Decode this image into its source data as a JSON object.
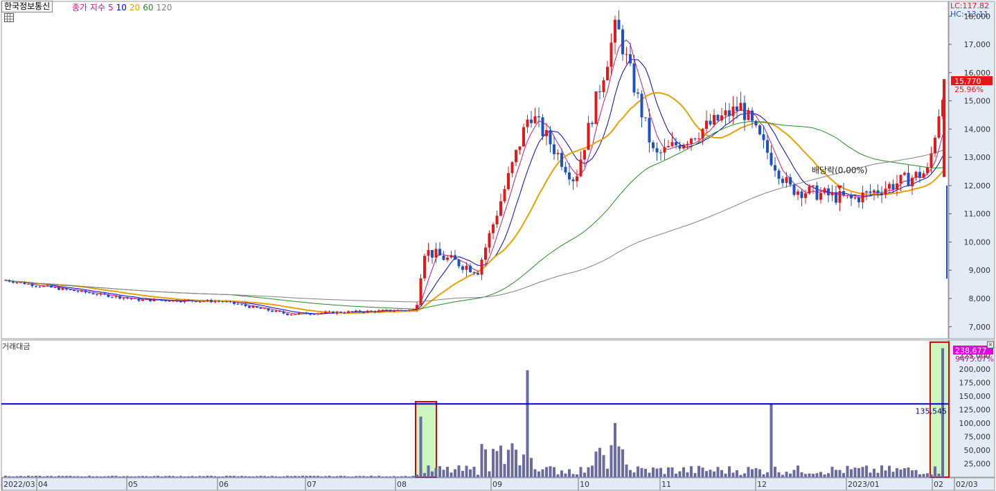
{
  "header": {
    "stock_name": "한국정보통신",
    "ma_label": "종가 지수",
    "ma_periods": [
      {
        "label": "5",
        "color": "#c71585"
      },
      {
        "label": "10",
        "color": "#0000cd"
      },
      {
        "label": "20",
        "color": "#e8a000"
      },
      {
        "label": "60",
        "color": "#228b22"
      },
      {
        "label": "120",
        "color": "#808080"
      }
    ],
    "lc": "LC:117.82",
    "hc": "HC:-13.11"
  },
  "price_labels": {
    "current_price": "15,770",
    "change_pct": "25.96%",
    "dividend_note": "배당락(0.00%)"
  },
  "volume_labels": {
    "title": "거래대금",
    "latest_value": "238,677",
    "latest_pct": "9475.07%",
    "reference_value": "135,545"
  },
  "colors": {
    "up": "#e31919",
    "down": "#1e50c8",
    "volume_bar": "#6a6aa5",
    "highlight_fill": "#ccf5c0",
    "highlight_border": "#e00000",
    "reference_line": "#0000cc",
    "axis_bg": "#e3ebf7"
  },
  "chart_data": [
    {
      "type": "candlestick",
      "title": "한국정보통신",
      "y_ticks": [
        "7,000",
        "8,000",
        "9,000",
        "10,000",
        "11,000",
        "12,000",
        "13,000",
        "14,000",
        "15,000",
        "16,000",
        "17,000",
        "18,000"
      ],
      "ylim": [
        6700,
        18400
      ],
      "x_ticks": [
        "2022/03",
        "04",
        "05",
        "06",
        "07",
        "08",
        "09",
        "10",
        "11",
        "12",
        "2023/01",
        "02",
        "02/03"
      ],
      "grid": false,
      "approx_close_path": [
        {
          "label": "2022/03",
          "close": 8650
        },
        {
          "label": "04",
          "close": 8450
        },
        {
          "label": "05",
          "close": 7950
        },
        {
          "label": "06",
          "close": 7900
        },
        {
          "label": "07",
          "close": 7450
        },
        {
          "label": "08",
          "close": 7600
        },
        {
          "label": "08 spike",
          "close": 9700
        },
        {
          "label": "09",
          "close": 9000
        },
        {
          "label": "09 high",
          "close": 14600
        },
        {
          "label": "10",
          "close": 12200
        },
        {
          "label": "10 high",
          "close": 17700
        },
        {
          "label": "11",
          "close": 13000
        },
        {
          "label": "11 high",
          "close": 14800
        },
        {
          "label": "12",
          "close": 13500
        },
        {
          "label": "12 low",
          "close": 11900
        },
        {
          "label": "2023/01",
          "close": 11500
        },
        {
          "label": "02",
          "close": 12500
        },
        {
          "label": "02/03",
          "close": 15770
        }
      ]
    },
    {
      "type": "bar",
      "title": "거래대금",
      "y_ticks": [
        "25,000",
        "50,000",
        "75,000",
        "100,000",
        "125,000",
        "150,000",
        "175,000",
        "200,000",
        "225,000"
      ],
      "ylim": [
        0,
        250000
      ],
      "reference_line": 135545,
      "notable_values": [
        {
          "label": "08",
          "value": 112000
        },
        {
          "label": "09",
          "value": 198000
        },
        {
          "label": "10",
          "value": 100000
        },
        {
          "label": "12",
          "value": 135000
        },
        {
          "label": "02",
          "value": 238677
        }
      ]
    }
  ]
}
